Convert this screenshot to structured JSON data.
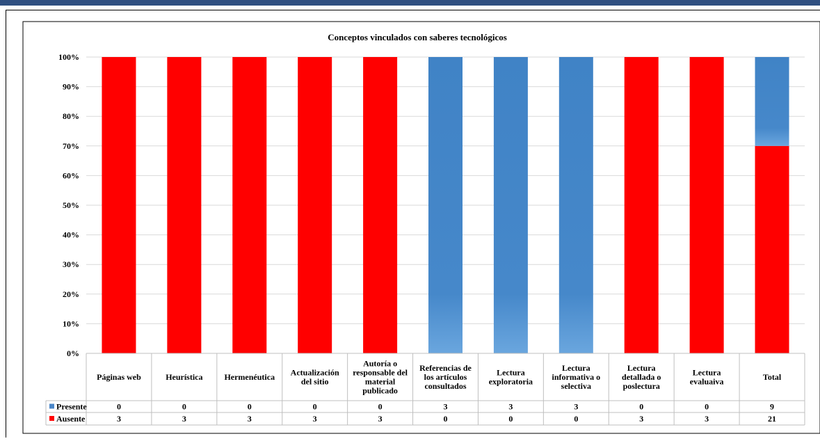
{
  "chart_data": {
    "type": "bar",
    "stacked": "percent",
    "title": "Conceptos vinculados con saberes tecnológicos",
    "xlabel": "",
    "ylabel": "",
    "ylim": [
      0,
      100
    ],
    "yticks": [
      "0%",
      "10%",
      "20%",
      "30%",
      "40%",
      "50%",
      "60%",
      "70%",
      "80%",
      "90%",
      "100%"
    ],
    "grid": true,
    "legend": "data-table-left",
    "categories": [
      [
        "Páginas web"
      ],
      [
        "Heurística"
      ],
      [
        "Hermenéutica"
      ],
      [
        "Actualización",
        "del sitio"
      ],
      [
        "Autoría o",
        "responsable del",
        "material",
        "publicado"
      ],
      [
        "Referencias de",
        "los artículos",
        "consultados"
      ],
      [
        "Lectura",
        "exploratoria"
      ],
      [
        "Lectura",
        "informativa o",
        "selectiva"
      ],
      [
        "Lectura",
        "detallada o",
        "poslectura"
      ],
      [
        "Lectura",
        "evaluaiva"
      ],
      [
        "Total"
      ]
    ],
    "series": [
      {
        "name": "Presente",
        "color": "#4a86c8",
        "values": [
          0,
          0,
          0,
          0,
          0,
          3,
          3,
          3,
          0,
          0,
          9
        ]
      },
      {
        "name": "Ausente",
        "color": "#ff0000",
        "values": [
          3,
          3,
          3,
          3,
          3,
          0,
          0,
          0,
          3,
          3,
          21
        ]
      }
    ]
  }
}
